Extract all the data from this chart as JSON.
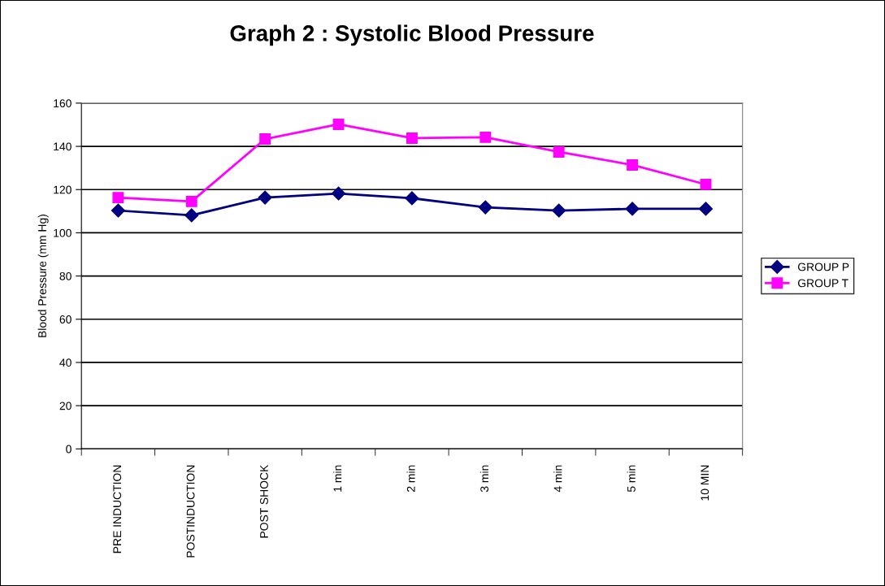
{
  "chart_data": {
    "type": "line",
    "title": "Graph 2 : Systolic Blood Pressure",
    "ylabel": "Blood Pressure (mm Hg)",
    "categories": [
      "PRE INDUCTION",
      "POSTINDUCTION",
      "POST SHOCK",
      "1 min",
      "2 min",
      "3 min",
      "4 min",
      "5 min",
      "10 MIN"
    ],
    "series": [
      {
        "name": "GROUP P",
        "color": "#000080",
        "marker": "diamond",
        "values": [
          110.3,
          108.1,
          116.3,
          118.2,
          116,
          111.8,
          110.3,
          111.1,
          111.1
        ]
      },
      {
        "name": "GROUP T",
        "color": "#ff00ff",
        "marker": "square",
        "values": [
          116.3,
          114.5,
          143.4,
          150.2,
          143.8,
          144.2,
          137.4,
          131.4,
          122.4
        ]
      }
    ],
    "ylim": [
      0,
      160
    ],
    "yticks": [
      0,
      20,
      40,
      60,
      80,
      100,
      120,
      140,
      160
    ],
    "grid": "y",
    "legend": "right"
  }
}
